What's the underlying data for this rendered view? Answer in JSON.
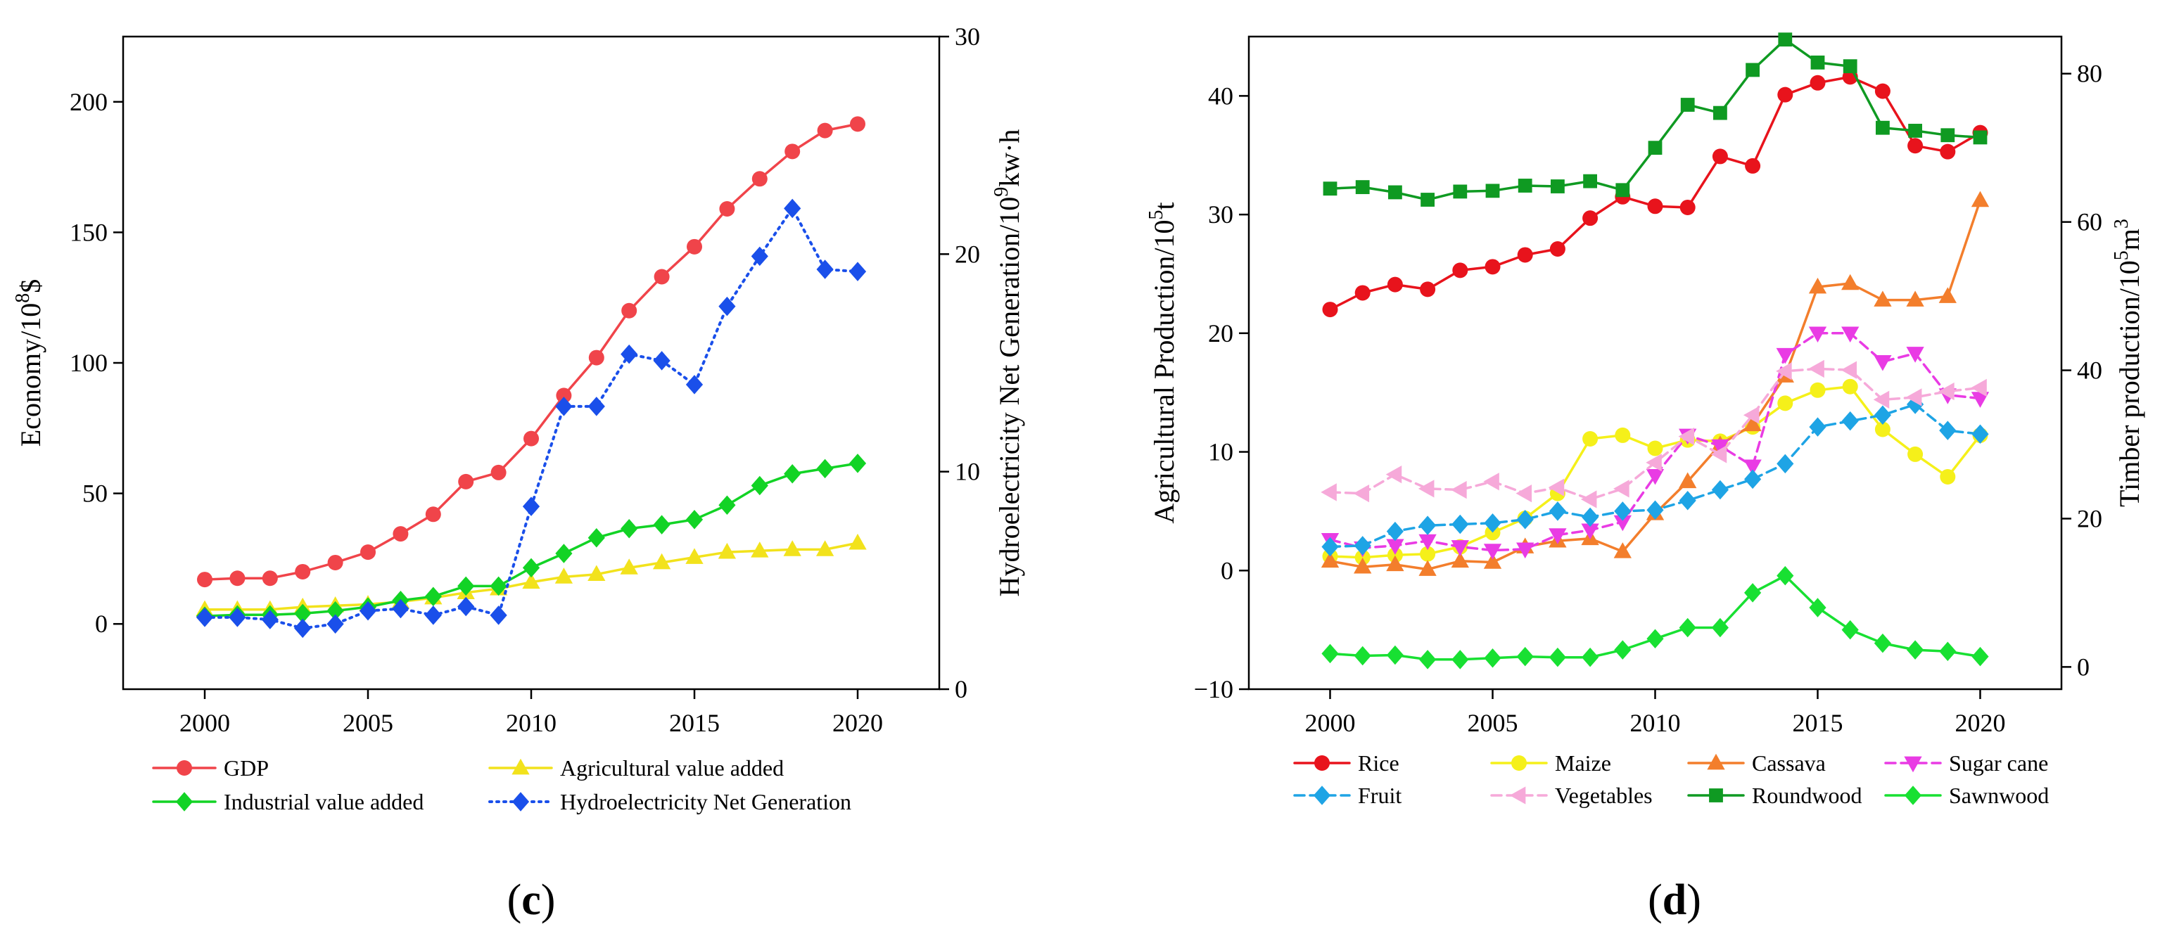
{
  "chart_data": [
    {
      "type": "line",
      "panel_label": "c",
      "panel_label_bold": "c",
      "ylabel": "Economy/10",
      "ylabel_sup": "8",
      "ylabel_suffix": "$",
      "y2label": "Hydroelectricity Net Generation/10",
      "y2label_sup": "9",
      "y2label_suffix": "kw·h",
      "xlim": [
        1997.5,
        2022.5
      ],
      "ylim": [
        -25,
        225
      ],
      "y2lim": [
        0,
        30
      ],
      "xticks": [
        2000,
        2005,
        2010,
        2015,
        2020
      ],
      "yticks": [
        0,
        50,
        100,
        150,
        200
      ],
      "y2ticks": [
        0,
        10,
        20,
        30
      ],
      "x": [
        2000,
        2001,
        2002,
        2003,
        2004,
        2005,
        2006,
        2007,
        2008,
        2009,
        2010,
        2011,
        2012,
        2013,
        2014,
        2015,
        2016,
        2017,
        2018,
        2019,
        2020
      ],
      "series": [
        {
          "name": "GDP",
          "color": "#F0444A",
          "marker": "circle",
          "dash": "solid",
          "axis": "left",
          "values": [
            17,
            17.5,
            17.5,
            20,
            23.5,
            27.5,
            34.5,
            42,
            54.5,
            58,
            71,
            87.5,
            102,
            120,
            133,
            144.5,
            159,
            170.5,
            181,
            189,
            191.5
          ]
        },
        {
          "name": "Agricultural value added",
          "color": "#F2E21C",
          "marker": "triangle-up",
          "dash": "solid",
          "axis": "left",
          "values": [
            5.5,
            5.5,
            5.5,
            6.5,
            7,
            7.5,
            8.5,
            10,
            12,
            13.5,
            16,
            18,
            19,
            21.5,
            23.5,
            25.5,
            27.5,
            28,
            28.5,
            28.5,
            31
          ]
        },
        {
          "name": "Industrial value added",
          "color": "#12D325",
          "marker": "diamond",
          "dash": "solid",
          "axis": "left",
          "values": [
            3,
            3.5,
            3.5,
            4,
            5,
            6.5,
            9,
            10.5,
            14.5,
            14.5,
            21.5,
            27,
            33,
            36.5,
            38,
            40,
            45.5,
            53,
            57.5,
            59.5,
            61.5
          ]
        },
        {
          "name": "Hydroelectricity Net Generation",
          "color": "#1A4FEA",
          "marker": "diamond",
          "dash": "dot",
          "axis": "right",
          "values": [
            3.3,
            3.3,
            3.2,
            2.8,
            3.0,
            3.6,
            3.7,
            3.4,
            3.8,
            3.4,
            8.4,
            13.0,
            13.0,
            15.4,
            15.1,
            14.0,
            17.6,
            19.9,
            22.1,
            19.3,
            19.2
          ]
        }
      ],
      "legend": [
        "GDP",
        "Agricultural value added",
        "Industrial value added",
        "Hydroelectricity Net Generation"
      ],
      "legend_position": "bottom"
    },
    {
      "type": "line",
      "panel_label": "d",
      "panel_label_bold": "d",
      "ylabel": "Agricultural Production/10",
      "ylabel_sup": "5",
      "ylabel_suffix": "t",
      "y2label": "Timber production/10",
      "y2label_sup": "5",
      "y2label_suffix": "m",
      "y2label_sup2": "3",
      "xlim": [
        1997.5,
        2022.5
      ],
      "ylim": [
        -10,
        45
      ],
      "y2lim": [
        -3,
        85
      ],
      "xticks": [
        2000,
        2005,
        2010,
        2015,
        2020
      ],
      "yticks": [
        -10,
        0,
        10,
        20,
        30,
        40
      ],
      "y2ticks": [
        0,
        20,
        40,
        60,
        80
      ],
      "x": [
        2000,
        2001,
        2002,
        2003,
        2004,
        2005,
        2006,
        2007,
        2008,
        2009,
        2010,
        2011,
        2012,
        2013,
        2014,
        2015,
        2016,
        2017,
        2018,
        2019,
        2020
      ],
      "series": [
        {
          "name": "Rice",
          "color": "#E8131C",
          "marker": "circle",
          "dash": "solid",
          "axis": "left",
          "values": [
            22,
            23.4,
            24.1,
            23.7,
            25.3,
            25.6,
            26.6,
            27.1,
            29.7,
            31.5,
            30.7,
            30.6,
            34.9,
            34.1,
            40.1,
            41.1,
            41.6,
            40.4,
            35.8,
            35.3,
            36.9
          ]
        },
        {
          "name": "Maize",
          "color": "#F5F01A",
          "marker": "circle",
          "dash": "solid",
          "axis": "left",
          "values": [
            1.2,
            1.1,
            1.3,
            1.4,
            2.0,
            3.2,
            4.4,
            6.5,
            11.1,
            11.4,
            10.3,
            11.0,
            10.9,
            12.1,
            14.1,
            15.2,
            15.5,
            11.9,
            9.8,
            7.9,
            11.4
          ]
        },
        {
          "name": "Cassava",
          "color": "#F37E2C",
          "marker": "triangle-up",
          "dash": "solid",
          "axis": "left",
          "values": [
            0.8,
            0.3,
            0.5,
            0.1,
            0.8,
            0.7,
            2.0,
            2.5,
            2.7,
            1.6,
            4.8,
            7.5,
            10.6,
            12.3,
            16.4,
            23.9,
            24.2,
            22.8,
            22.8,
            23.1,
            31.2
          ]
        },
        {
          "name": "Sugar cane",
          "color": "#E93BE4",
          "marker": "triangle-down",
          "dash": "dash",
          "axis": "left",
          "values": [
            2.6,
            1.9,
            2.1,
            2.5,
            2.0,
            1.7,
            1.8,
            3.0,
            3.4,
            4.1,
            8.0,
            11.4,
            10.5,
            8.8,
            18.2,
            20.0,
            20.0,
            17.6,
            18.3,
            14.8,
            14.5
          ]
        },
        {
          "name": "Fruit",
          "color": "#1EA4E5",
          "marker": "diamond",
          "dash": "dash",
          "axis": "left",
          "values": [
            2.0,
            2.1,
            3.3,
            3.8,
            3.9,
            4.0,
            4.3,
            5.0,
            4.5,
            5.0,
            5.1,
            5.9,
            6.8,
            7.7,
            9.0,
            12.1,
            12.6,
            13.1,
            14.0,
            11.8,
            11.5
          ]
        },
        {
          "name": "Vegetables",
          "color": "#F6A9D9",
          "marker": "triangle-left",
          "dash": "dash",
          "axis": "left",
          "values": [
            6.6,
            6.5,
            8.1,
            6.9,
            6.8,
            7.5,
            6.5,
            7.0,
            6.0,
            6.9,
            9.1,
            11.3,
            9.8,
            13.1,
            16.8,
            17.0,
            16.9,
            14.4,
            14.6,
            15.1,
            15.4
          ]
        },
        {
          "name": "Roundwood",
          "color": "#0F9A22",
          "marker": "square",
          "dash": "solid",
          "axis": "right",
          "values": [
            64.5,
            64.7,
            64.0,
            63.0,
            64.1,
            64.2,
            64.9,
            64.8,
            65.5,
            64.3,
            70.0,
            75.8,
            74.7,
            80.5,
            84.6,
            81.5,
            81.0,
            72.7,
            72.3,
            71.7,
            71.4
          ]
        },
        {
          "name": "Sawnwood",
          "color": "#18E032",
          "marker": "diamond",
          "dash": "solid",
          "axis": "right",
          "values": [
            1.8,
            1.5,
            1.6,
            1.0,
            1.0,
            1.2,
            1.4,
            1.3,
            1.3,
            2.3,
            3.8,
            5.3,
            5.3,
            10.0,
            12.3,
            8.0,
            5.0,
            3.2,
            2.3,
            2.1,
            1.4
          ]
        }
      ],
      "legend": [
        "Rice",
        "Maize",
        "Cassava",
        "Sugar cane",
        "Fruit",
        "Vegetables",
        "Roundwood",
        "Sawnwood"
      ],
      "legend_position": "bottom"
    }
  ]
}
